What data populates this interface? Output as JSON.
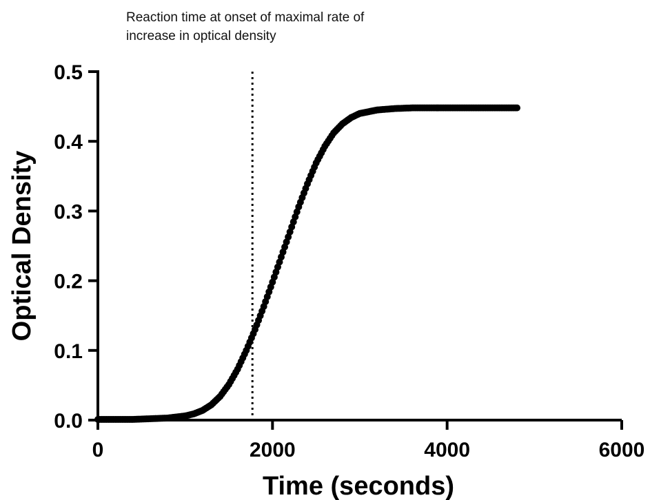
{
  "chart_data": {
    "type": "scatter",
    "annotation": {
      "lines": [
        "Reaction time at onset of maximal rate of",
        "increase in optical density"
      ],
      "x": 1770
    },
    "xlabel": "Time (seconds)",
    "ylabel": "Optical Density",
    "xlim": [
      0,
      6000
    ],
    "ylim": [
      0,
      0.5
    ],
    "x_ticks": [
      0,
      2000,
      4000,
      6000
    ],
    "x_tick_labels": [
      "0",
      "2000",
      "4000",
      "6000"
    ],
    "y_ticks": [
      0.0,
      0.1,
      0.2,
      0.3,
      0.4,
      0.5
    ],
    "y_tick_labels": [
      "0.0",
      "0.1",
      "0.2",
      "0.3",
      "0.4",
      "0.5"
    ],
    "grid": false,
    "series": [
      {
        "color": "#000000",
        "x": [
          0,
          200,
          400,
          600,
          800,
          1000,
          1100,
          1200,
          1300,
          1400,
          1500,
          1600,
          1700,
          1800,
          1900,
          2000,
          2100,
          2200,
          2300,
          2400,
          2500,
          2600,
          2700,
          2800,
          2900,
          3000,
          3200,
          3400,
          3600,
          3800,
          4000,
          4200,
          4400,
          4600,
          4800
        ],
        "y": [
          0.001,
          0.001,
          0.001,
          0.002,
          0.003,
          0.006,
          0.009,
          0.014,
          0.022,
          0.034,
          0.051,
          0.073,
          0.1,
          0.13,
          0.163,
          0.198,
          0.234,
          0.27,
          0.306,
          0.339,
          0.369,
          0.393,
          0.412,
          0.425,
          0.434,
          0.44,
          0.445,
          0.447,
          0.448,
          0.448,
          0.448,
          0.448,
          0.448,
          0.448,
          0.448
        ]
      }
    ]
  }
}
